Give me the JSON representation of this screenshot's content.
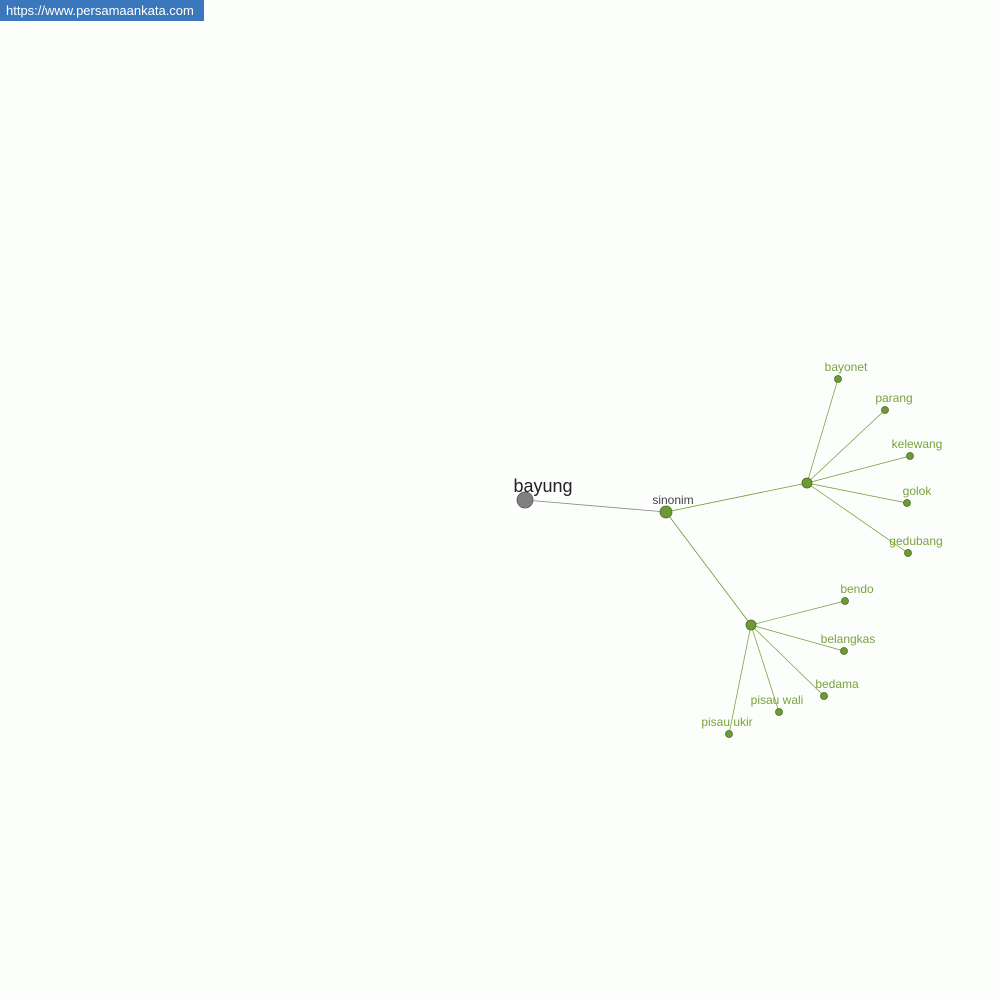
{
  "watermark": "https://www.persamaankata.com",
  "graph": {
    "root": {
      "label": "bayung",
      "color": "#808080"
    },
    "relation": {
      "label": "sinonim",
      "color": "#6e9a35"
    },
    "groups": [
      {
        "leaves": [
          "bayonet",
          "parang",
          "kelewang",
          "golok",
          "gedubang"
        ]
      },
      {
        "leaves": [
          "bendo",
          "belangkas",
          "bedama",
          "pisau wali",
          "pisau ukir"
        ]
      }
    ],
    "colors": {
      "node": "#6e9a35",
      "label": "#7aa23e",
      "root_edge": "#808080",
      "edge": "#6e9a35"
    }
  }
}
